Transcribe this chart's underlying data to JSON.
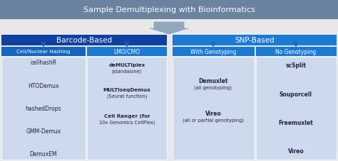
{
  "title": "Sample Demultiplexing with Bioinformatics",
  "title_bg": "#6b82a0",
  "title_fg": "white",
  "barcode_label": "Barcode-Based",
  "snp_label": "SNP-Based",
  "header_dark_bg": "#1040a0",
  "header_light_bg": "#1a7ad4",
  "sub_header_bg": "#1a7ad4",
  "sub_header_dark_bg": "#1565c0",
  "content_bg": "#cddaee",
  "content_fg": "#222244",
  "chevron_color": "#8fa8be",
  "blue_arrow": "#2060c0",
  "white": "#ffffff",
  "bg_color": "#e8e8e8",
  "col1_header": "Cell/Nuclear Hashing",
  "col2_header": "LMO/CMO",
  "col3_header": "With Genotyping",
  "col4_header": "No Genotyping",
  "col1_items": [
    "cellhashR",
    "HTODemux",
    "hashedDrops",
    "GMM-Demux",
    "DemuxEM"
  ],
  "col2_main": [
    "deMULTIplex",
    "MULTIseqDemux",
    "Cell Ranger (for"
  ],
  "col2_sub": [
    "(standalone)",
    "(Seurat function)",
    "10x Genomics CellPlex)"
  ],
  "col2_bold": [
    true,
    true,
    true
  ],
  "col3_main": [
    "Demuxlet",
    "Vireo"
  ],
  "col3_sub": [
    "(all genotyping)",
    "(all or partial genotyping)"
  ],
  "col4_items": [
    "scSplit",
    "Souporcell",
    "Freemuxlet",
    "Vireo"
  ],
  "figsize": [
    4.74,
    2.28
  ],
  "dpi": 100
}
